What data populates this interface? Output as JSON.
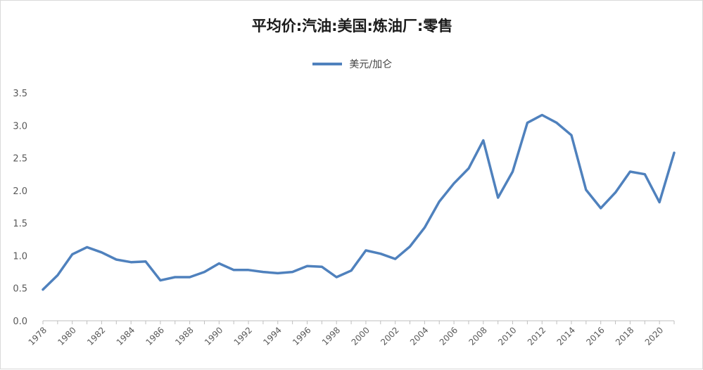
{
  "title": "平均价:汽油:美国:炼油厂:零售",
  "colors": {
    "series": "#4f81bd",
    "axis": "#bfbfbf",
    "text": "#595959"
  },
  "chart_data": {
    "type": "line",
    "title": "平均价:汽油:美国:炼油厂:零售",
    "xlabel": "",
    "ylabel": "",
    "ylim": [
      0,
      3.5
    ],
    "yticks": [
      "0.0",
      "0.5",
      "1.0",
      "1.5",
      "2.0",
      "2.5",
      "3.0",
      "3.5"
    ],
    "grid": false,
    "legend": "top-center",
    "x": [
      1978,
      1979,
      1980,
      1981,
      1982,
      1983,
      1984,
      1985,
      1986,
      1987,
      1988,
      1989,
      1990,
      1991,
      1992,
      1993,
      1994,
      1995,
      1996,
      1997,
      1998,
      1999,
      2000,
      2001,
      2002,
      2003,
      2004,
      2005,
      2006,
      2007,
      2008,
      2009,
      2010,
      2011,
      2012,
      2013,
      2014,
      2015,
      2016,
      2017,
      2018,
      2019,
      2020,
      2021
    ],
    "xticks": [
      "1978",
      "1980",
      "1982",
      "1984",
      "1986",
      "1988",
      "1990",
      "1992",
      "1994",
      "1996",
      "1998",
      "2000",
      "2002",
      "2004",
      "2006",
      "2008",
      "2010",
      "2012",
      "2014",
      "2016",
      "2018",
      "2020"
    ],
    "series": [
      {
        "name": "美元/加仑",
        "values": [
          0.48,
          0.7,
          1.02,
          1.13,
          1.05,
          0.94,
          0.9,
          0.91,
          0.62,
          0.67,
          0.67,
          0.75,
          0.88,
          0.78,
          0.78,
          0.75,
          0.73,
          0.75,
          0.84,
          0.83,
          0.67,
          0.77,
          1.08,
          1.03,
          0.95,
          1.14,
          1.43,
          1.83,
          2.11,
          2.34,
          2.77,
          1.89,
          2.29,
          3.04,
          3.16,
          3.04,
          2.85,
          2.01,
          1.73,
          1.97,
          2.29,
          2.25,
          1.82,
          2.58
        ]
      }
    ]
  }
}
